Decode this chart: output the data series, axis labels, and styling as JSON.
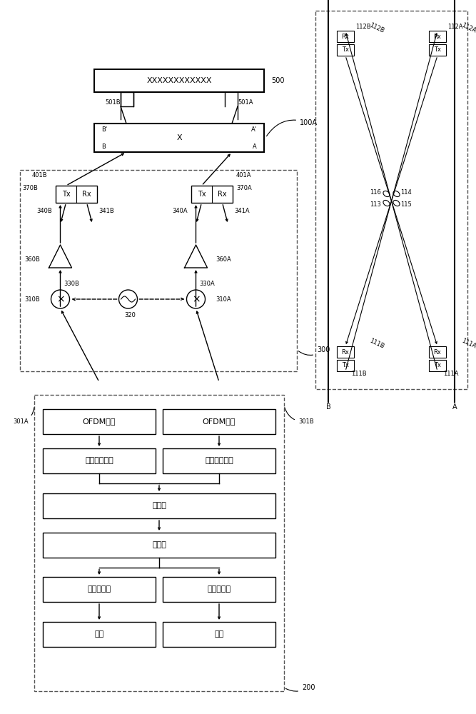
{
  "bg_color": "#ffffff",
  "fig_width": 6.67,
  "fig_height": 10.0,
  "chinese": {
    "ofdm": "OFDM调制",
    "resource": "资源元素映射",
    "precode": "预编码",
    "layer": "层映射",
    "mod_mapper": "调制映射器",
    "noise": "加扰"
  },
  "label_500": "XXXXXXXXXXXX",
  "label_x": "X"
}
